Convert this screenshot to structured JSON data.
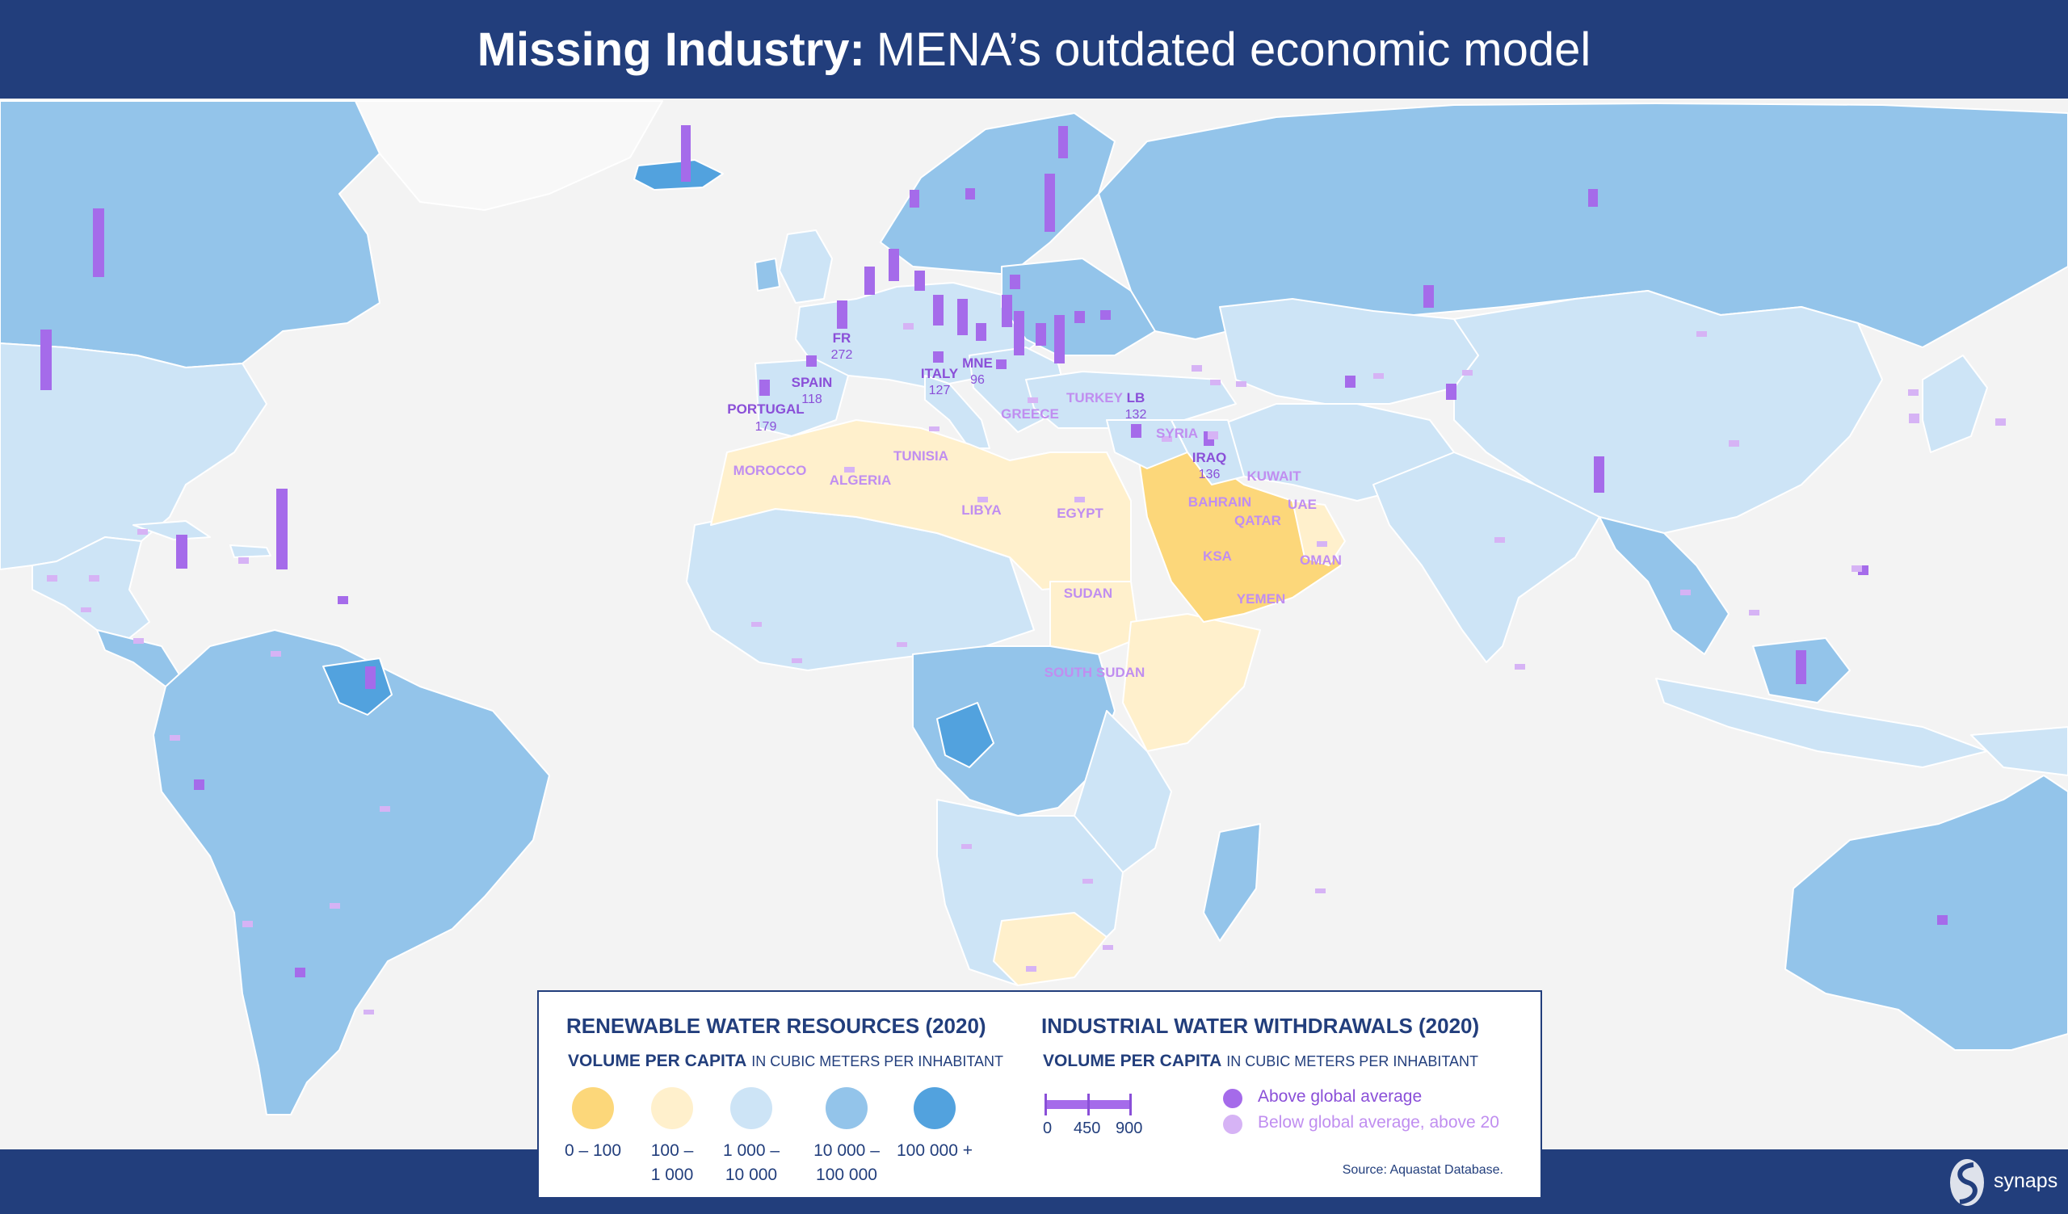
{
  "header": {
    "title_bold": "Missing Industry:",
    "title_rest": "MENA’s outdated economic model"
  },
  "colors": {
    "bg": "#f3f3f3",
    "navy": "#223e7c",
    "c0": "#fcd77a",
    "c1": "#fff0cc",
    "c2": "#cde4f6",
    "c3": "#93c4ea",
    "c4": "#52a2de",
    "bar_above": "#a56bea",
    "bar_below": "#d6b3f5"
  },
  "countries": {
    "portugal": {
      "name": "PORTUGAL",
      "value": "179"
    },
    "spain": {
      "name": "SPAIN",
      "value": "118"
    },
    "fr": {
      "name": "FR",
      "value": "272"
    },
    "italy": {
      "name": "ITALY",
      "value": "127"
    },
    "mne": {
      "name": "MNE",
      "value": "96"
    },
    "lb": {
      "name": "LB",
      "value": "132"
    },
    "iraq": {
      "name": "IRAQ",
      "value": "136"
    },
    "greece": {
      "name": "GREECE"
    },
    "turkey": {
      "name": "TURKEY"
    },
    "syria": {
      "name": "SYRIA"
    },
    "morocco": {
      "name": "MOROCCO"
    },
    "algeria": {
      "name": "ALGERIA"
    },
    "tunisia": {
      "name": "TUNISIA"
    },
    "libya": {
      "name": "LIBYA"
    },
    "egypt": {
      "name": "EGYPT"
    },
    "kuwait": {
      "name": "KUWAIT"
    },
    "bahrain": {
      "name": "BAHRAIN"
    },
    "qatar": {
      "name": "QATAR"
    },
    "uae": {
      "name": "UAE"
    },
    "ksa": {
      "name": "KSA"
    },
    "oman": {
      "name": "OMAN"
    },
    "yemen": {
      "name": "YEMEN"
    },
    "sudan": {
      "name": "SUDAN"
    },
    "south_sudan": {
      "name": "SOUTH SUDAN"
    }
  },
  "legend": {
    "renewable": {
      "title": "RENEWABLE WATER RESOURCES (2020)",
      "subtitle_bold": "VOLUME PER CAPITA",
      "subtitle_rest": "IN CUBIC METERS PER INHABITANT",
      "classes": [
        {
          "line1": "0 – 100",
          "line2": ""
        },
        {
          "line1": "100 –",
          "line2": "1 000"
        },
        {
          "line1": "1 000 –",
          "line2": "10 000"
        },
        {
          "line1": "10 000 –",
          "line2": "100 000"
        },
        {
          "line1": "100 000 +",
          "line2": ""
        }
      ]
    },
    "industrial": {
      "title": "INDUSTRIAL WATER WITHDRAWALS (2020)",
      "subtitle_bold": "VOLUME PER CAPITA",
      "subtitle_rest": "IN CUBIC METERS PER INHABITANT",
      "scale": [
        "0",
        "450",
        "900"
      ],
      "above": "Above global average",
      "below": "Below global average, above 20"
    },
    "source": "Source: Aquastat Database."
  },
  "brand": {
    "name": "synaps"
  }
}
